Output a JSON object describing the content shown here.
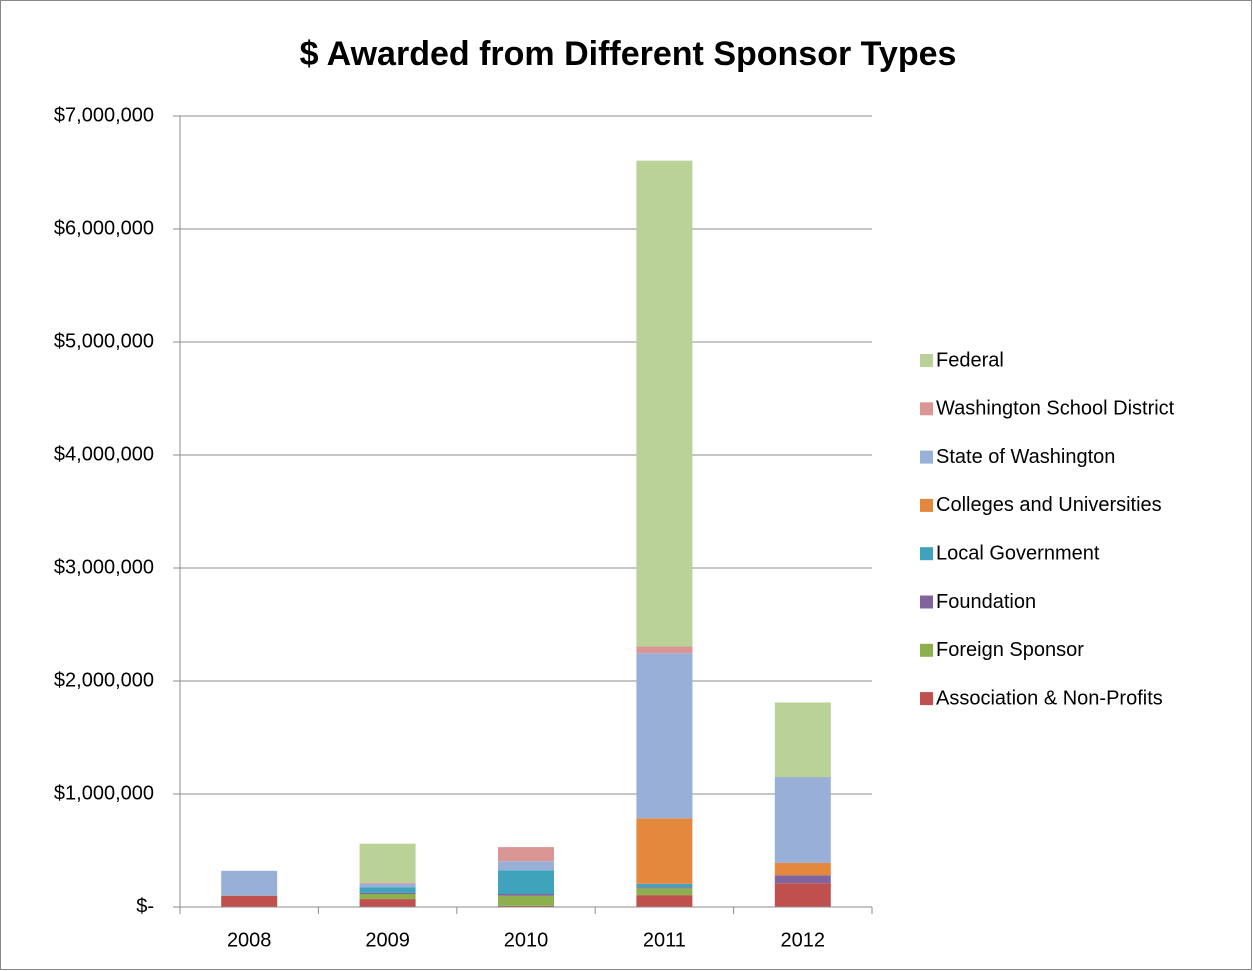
{
  "chart_data": {
    "type": "stacked_bar",
    "title": "$ Awarded from Different Sponsor Types",
    "categories": [
      "2008",
      "2009",
      "2010",
      "2011",
      "2012"
    ],
    "series": [
      {
        "name": "Association & Non-Profits",
        "color": "#c0504d",
        "values": [
          100000,
          70000,
          10000,
          105000,
          210000
        ]
      },
      {
        "name": "Foreign Sponsor",
        "color": "#8eb04c",
        "values": [
          0,
          45000,
          90000,
          60000,
          0
        ]
      },
      {
        "name": "Foundation",
        "color": "#7f649e",
        "values": [
          0,
          10000,
          15000,
          10000,
          70000
        ]
      },
      {
        "name": "Local Government",
        "color": "#3ea3bb",
        "values": [
          0,
          50000,
          210000,
          30000,
          0
        ]
      },
      {
        "name": "Colleges and Universities",
        "color": "#e4883d",
        "values": [
          0,
          0,
          0,
          580000,
          110000
        ]
      },
      {
        "name": "State of Washington",
        "color": "#98b0d7",
        "values": [
          220000,
          30000,
          80000,
          1460000,
          760000
        ]
      },
      {
        "name": "Washington School District",
        "color": "#d99694",
        "values": [
          0,
          10000,
          125000,
          60000,
          0
        ]
      },
      {
        "name": "Federal",
        "color": "#bad197",
        "values": [
          0,
          345000,
          0,
          4300000,
          660000
        ]
      }
    ],
    "ylim": [
      0,
      7000000
    ],
    "yticks": [
      {
        "value": 0,
        "label": "$-"
      },
      {
        "value": 1000000,
        "label": "$1,000,000"
      },
      {
        "value": 2000000,
        "label": "$2,000,000"
      },
      {
        "value": 3000000,
        "label": "$3,000,000"
      },
      {
        "value": 4000000,
        "label": "$4,000,000"
      },
      {
        "value": 5000000,
        "label": "$5,000,000"
      },
      {
        "value": 6000000,
        "label": "$6,000,000"
      },
      {
        "value": 7000000,
        "label": "$7,000,000"
      }
    ],
    "grid": true,
    "legend": "right"
  }
}
